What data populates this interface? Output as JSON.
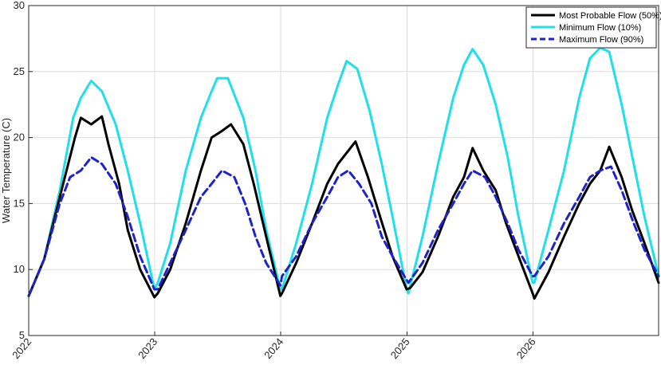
{
  "chart_data": {
    "type": "line",
    "title": "",
    "xlabel": "",
    "ylabel": "Water Temperature (C)",
    "xlim": [
      "2022-01-01",
      "2026-12-31"
    ],
    "ylim": [
      5,
      30
    ],
    "yticks": [
      5,
      10,
      15,
      20,
      25,
      30
    ],
    "xticks": [
      {
        "label": "2022",
        "value": "2022-01-01"
      },
      {
        "label": "2023",
        "value": "2023-01-01"
      },
      {
        "label": "2024",
        "value": "2024-01-01"
      },
      {
        "label": "2025",
        "value": "2025-01-01"
      },
      {
        "label": "2026",
        "value": "2026-01-01"
      }
    ],
    "grid": true,
    "legend_position": "top-right",
    "series": [
      {
        "name": "Most Probable Flow (50%)",
        "color": "#000000",
        "style": "solid",
        "x": [
          "2022-01-01",
          "2022-02-15",
          "2022-04-01",
          "2022-05-15",
          "2022-06-01",
          "2022-07-01",
          "2022-08-01",
          "2022-08-20",
          "2022-09-20",
          "2022-10-15",
          "2022-11-20",
          "2022-12-31",
          "2023-01-10",
          "2023-02-15",
          "2023-04-01",
          "2023-05-15",
          "2023-06-15",
          "2023-07-15",
          "2023-08-10",
          "2023-09-15",
          "2023-10-15",
          "2023-11-20",
          "2023-12-31",
          "2024-01-05",
          "2024-02-15",
          "2024-04-01",
          "2024-05-15",
          "2024-06-15",
          "2024-07-15",
          "2024-08-05",
          "2024-09-10",
          "2024-10-15",
          "2024-11-20",
          "2024-12-31",
          "2025-01-10",
          "2025-02-15",
          "2025-04-01",
          "2025-05-15",
          "2025-06-15",
          "2025-07-10",
          "2025-08-10",
          "2025-09-15",
          "2025-10-15",
          "2025-11-20",
          "2025-12-31",
          "2026-01-05",
          "2026-02-15",
          "2026-04-01",
          "2026-05-15",
          "2026-06-15",
          "2026-07-15",
          "2026-08-10",
          "2026-09-15",
          "2026-10-15",
          "2026-11-20",
          "2026-12-31"
        ],
        "y": [
          8.0,
          10.8,
          15.5,
          20.0,
          21.5,
          21.0,
          21.6,
          19.5,
          16.5,
          13.0,
          10.0,
          7.9,
          8.2,
          10.0,
          13.5,
          17.5,
          20.0,
          20.5,
          21.0,
          19.5,
          16.5,
          12.5,
          8.0,
          8.2,
          10.5,
          13.5,
          16.5,
          18.0,
          19.0,
          19.7,
          17.0,
          14.0,
          11.0,
          8.5,
          8.6,
          9.8,
          12.5,
          15.5,
          17.0,
          19.2,
          17.5,
          16.0,
          13.5,
          11.0,
          8.2,
          7.8,
          9.8,
          12.5,
          15.0,
          16.5,
          17.5,
          19.3,
          17.0,
          14.5,
          12.0,
          9.0
        ]
      },
      {
        "name": "Minimum Flow (10%)",
        "color": "#1fe0e8",
        "style": "solid",
        "x": [
          "2022-01-01",
          "2022-02-15",
          "2022-04-01",
          "2022-05-10",
          "2022-06-01",
          "2022-07-01",
          "2022-08-01",
          "2022-09-10",
          "2022-10-15",
          "2022-11-20",
          "2022-12-31",
          "2023-01-10",
          "2023-02-15",
          "2023-04-01",
          "2023-05-15",
          "2023-06-15",
          "2023-07-01",
          "2023-08-01",
          "2023-09-15",
          "2023-10-20",
          "2023-11-20",
          "2023-12-31",
          "2024-01-05",
          "2024-02-15",
          "2024-04-01",
          "2024-05-15",
          "2024-06-15",
          "2024-07-10",
          "2024-08-10",
          "2024-09-15",
          "2024-10-20",
          "2024-11-20",
          "2024-12-31",
          "2025-01-05",
          "2025-02-15",
          "2025-04-01",
          "2025-05-15",
          "2025-06-15",
          "2025-07-10",
          "2025-08-10",
          "2025-09-15",
          "2025-10-20",
          "2025-11-20",
          "2025-12-31",
          "2026-01-05",
          "2026-02-15",
          "2026-04-01",
          "2026-05-15",
          "2026-06-15",
          "2026-07-15",
          "2026-08-10",
          "2026-09-15",
          "2026-10-20",
          "2026-11-20",
          "2026-12-31"
        ],
        "y": [
          8.0,
          10.8,
          16.0,
          21.5,
          23.0,
          24.3,
          23.5,
          21.0,
          17.5,
          13.5,
          8.5,
          9.0,
          12.0,
          17.5,
          21.5,
          23.5,
          24.5,
          24.5,
          21.5,
          17.5,
          13.0,
          8.5,
          8.5,
          12.0,
          16.5,
          21.5,
          24.0,
          25.8,
          25.2,
          22.0,
          18.0,
          14.0,
          8.5,
          8.2,
          12.5,
          18.0,
          23.0,
          25.5,
          26.7,
          25.5,
          22.5,
          18.5,
          14.0,
          9.0,
          9.0,
          13.0,
          17.5,
          23.0,
          26.0,
          26.8,
          26.5,
          22.5,
          18.0,
          14.0,
          9.5
        ]
      },
      {
        "name": "Maximum Flow (90%)",
        "color": "#1f22c8",
        "style": "dashed",
        "x": [
          "2022-01-01",
          "2022-02-15",
          "2022-04-01",
          "2022-05-01",
          "2022-06-01",
          "2022-07-01",
          "2022-08-01",
          "2022-09-10",
          "2022-10-15",
          "2022-11-20",
          "2022-12-31",
          "2023-01-10",
          "2023-02-15",
          "2023-04-01",
          "2023-05-15",
          "2023-06-15",
          "2023-07-15",
          "2023-08-20",
          "2023-09-20",
          "2023-10-20",
          "2023-11-20",
          "2023-12-31",
          "2024-01-05",
          "2024-02-15",
          "2024-04-01",
          "2024-05-15",
          "2024-06-15",
          "2024-07-15",
          "2024-08-15",
          "2024-09-20",
          "2024-10-20",
          "2024-11-20",
          "2024-12-31",
          "2025-01-05",
          "2025-02-15",
          "2025-04-01",
          "2025-05-15",
          "2025-06-15",
          "2025-07-10",
          "2025-08-15",
          "2025-09-15",
          "2025-10-20",
          "2025-11-20",
          "2025-12-31",
          "2026-01-05",
          "2026-02-15",
          "2026-04-01",
          "2026-05-15",
          "2026-06-15",
          "2026-07-15",
          "2026-08-15",
          "2026-09-15",
          "2026-10-20",
          "2026-11-20",
          "2026-12-31"
        ],
        "y": [
          8.0,
          10.8,
          15.0,
          17.0,
          17.5,
          18.5,
          18.0,
          16.5,
          14.0,
          11.0,
          8.5,
          8.5,
          10.5,
          13.0,
          15.5,
          16.5,
          17.5,
          17.0,
          15.0,
          12.5,
          10.5,
          8.8,
          9.5,
          11.0,
          13.5,
          15.5,
          17.0,
          17.5,
          16.5,
          15.0,
          12.5,
          11.0,
          9.2,
          9.0,
          10.5,
          13.0,
          15.0,
          16.5,
          17.5,
          17.0,
          15.5,
          13.5,
          11.5,
          9.5,
          9.5,
          11.0,
          13.5,
          15.5,
          17.0,
          17.5,
          17.8,
          16.0,
          13.5,
          11.5,
          9.5
        ]
      }
    ]
  }
}
